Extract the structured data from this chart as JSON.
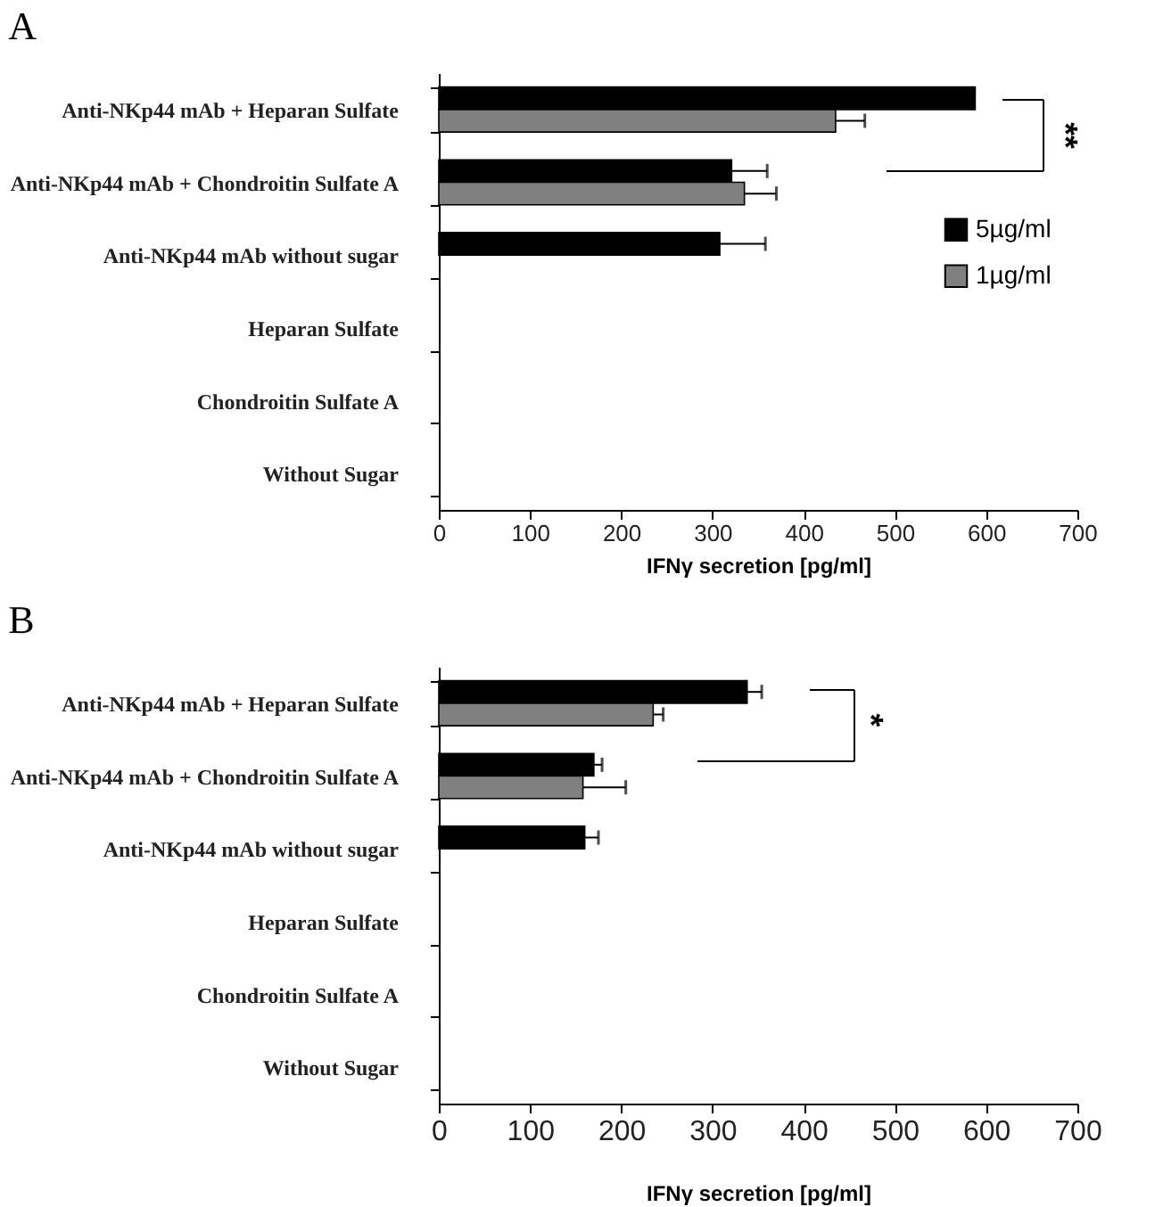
{
  "chart_data": [
    {
      "type": "bar",
      "title": "A",
      "orientation": "horizontal",
      "categories": [
        "Anti-NKp44 mAb + Heparan Sulfate",
        "Anti-NKp44 mAb + Chondroitin Sulfate A",
        "Anti-NKp44 mAb without sugar",
        "Heparan Sulfate",
        "Chondroitin Sulfate A",
        "Without Sugar"
      ],
      "series": [
        {
          "name": "5µg/ml",
          "color": "#000000",
          "values": [
            588,
            321,
            308,
            null,
            null,
            null
          ],
          "errors": [
            null,
            39,
            50,
            null,
            null,
            null
          ]
        },
        {
          "name": "1µg/ml",
          "color": "#808080",
          "values": [
            435,
            335,
            null,
            null,
            null,
            null
          ],
          "errors": [
            32,
            35,
            null,
            null,
            null,
            null
          ]
        }
      ],
      "xlim": [
        0,
        700
      ],
      "xticks": [
        0,
        100,
        200,
        300,
        400,
        500,
        600,
        700
      ],
      "xlabel": "IFNγ secretion [pg/ml]",
      "legend": "right",
      "annotations": [
        "**"
      ]
    },
    {
      "type": "bar",
      "title": "B",
      "orientation": "horizontal",
      "categories": [
        "Anti-NKp44 mAb + Heparan Sulfate",
        "Anti-NKp44 mAb + Chondroitin Sulfate A",
        "Anti-NKp44 mAb without sugar",
        "Heparan Sulfate",
        "Chondroitin Sulfate A",
        "Without Sugar"
      ],
      "series": [
        {
          "name": "5µg/ml",
          "color": "#000000",
          "values": [
            338,
            170,
            160,
            null,
            null,
            null
          ],
          "errors": [
            16,
            9,
            15,
            null,
            null,
            null
          ]
        },
        {
          "name": "1µg/ml",
          "color": "#808080",
          "values": [
            235,
            158,
            null,
            null,
            null,
            null
          ],
          "errors": [
            11,
            47,
            null,
            null,
            null,
            null
          ]
        }
      ],
      "xlim": [
        0,
        700
      ],
      "xticks": [
        0,
        100,
        200,
        300,
        400,
        500,
        600,
        700
      ],
      "xlabel": "IFNγ secretion [pg/ml]",
      "legend": "right",
      "annotations": [
        "*"
      ]
    }
  ]
}
